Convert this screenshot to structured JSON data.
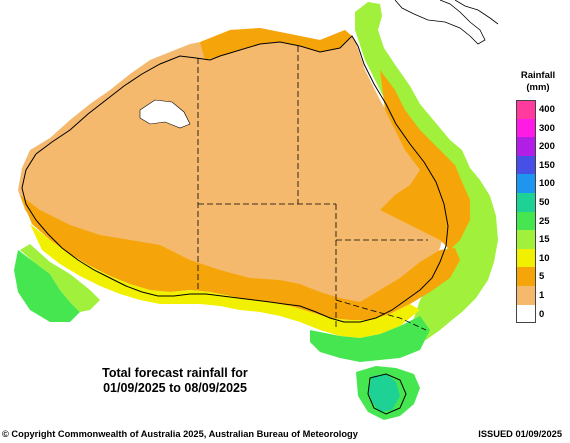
{
  "map": {
    "title_line1": "Total forecast rainfall for",
    "title_line2": "01/09/2025 to 08/09/2025"
  },
  "legend": {
    "title_line1": "Rainfall",
    "title_line2": "(mm)",
    "bins": [
      {
        "label": "400",
        "color": "#ff3c9e"
      },
      {
        "label": "300",
        "color": "#ff1ae6"
      },
      {
        "label": "200",
        "color": "#b21ee6"
      },
      {
        "label": "150",
        "color": "#4650e6"
      },
      {
        "label": "100",
        "color": "#1e96f0"
      },
      {
        "label": "50",
        "color": "#1ed296"
      },
      {
        "label": "25",
        "color": "#46e650"
      },
      {
        "label": "15",
        "color": "#a0f03c"
      },
      {
        "label": "10",
        "color": "#f0f000"
      },
      {
        "label": "5",
        "color": "#f5a50a"
      },
      {
        "label": "1",
        "color": "#f5b96e"
      },
      {
        "label": "0",
        "color": "#ffffff"
      }
    ]
  },
  "footer": {
    "copyright": "© Copyright Commonwealth of Australia 2025, Australian Bureau of Meteorology",
    "issued": "ISSUED 01/09/2025"
  }
}
